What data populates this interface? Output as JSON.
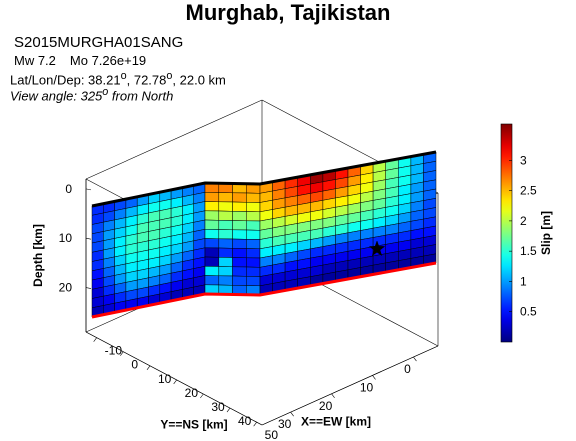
{
  "header": {
    "title": "Murghab, Tajikistan",
    "event_id": "S2015MURGHA01SANG",
    "mw_label": "Mw 7.2",
    "mo_label": "Mo 7.26e+19",
    "location_prefix": "Lat/Lon/Dep: 38.21",
    "lon_text": ", 72.78",
    "dep_text": ", 22.0 km",
    "degree_mark": "o",
    "view_prefix": "View angle: 325",
    "view_suffix": " from North"
  },
  "colors": {
    "fault_top": "#000000",
    "fault_bottom": "#ff0000",
    "grid_line": "#000000",
    "box_line": "#000000",
    "epicenter": "#000000"
  },
  "chart_data": {
    "type": "heatmap",
    "projection": "3d",
    "view_azimuth_deg": 325,
    "title": "Murghab, Tajikistan",
    "colorbar": {
      "label": "Slip [m]",
      "range": [
        0,
        3.6
      ],
      "ticks": [
        0.5,
        1,
        1.5,
        2,
        2.5,
        3
      ],
      "tick_labels": [
        "0.5",
        "1",
        "1.5",
        "2",
        "2.5",
        "3"
      ],
      "colormap": "jet"
    },
    "axes": {
      "x": {
        "label": "X==EW [km]",
        "ticks": [
          0,
          10,
          20,
          30
        ],
        "tick_labels": [
          "0",
          "10",
          "20",
          "30"
        ],
        "range": [
          -6,
          37
        ]
      },
      "y": {
        "label": "Y==NS [km]",
        "ticks": [
          -10,
          0,
          10,
          20,
          30,
          40,
          50
        ],
        "tick_labels": [
          "-10",
          "0",
          "10",
          "20",
          "30",
          "40",
          "50"
        ],
        "range": [
          -14,
          52
        ]
      },
      "z": {
        "label": "Depth [km]",
        "ticks": [
          0,
          10,
          20
        ],
        "tick_labels": [
          "0",
          "10",
          "20"
        ],
        "range": [
          -2,
          29
        ],
        "reversed": true
      }
    },
    "segments": [
      {
        "name_hidden": true,
        "rows": 12,
        "cols": 10,
        "slip": [
          [
            0.6,
            0.6,
            0.7,
            0.8,
            1.0,
            1.2,
            1.1,
            1.0,
            0.9,
            0.8
          ],
          [
            0.6,
            0.7,
            0.9,
            1.1,
            1.3,
            1.4,
            1.4,
            1.3,
            1.1,
            0.9
          ],
          [
            0.7,
            0.9,
            1.1,
            1.3,
            1.5,
            1.6,
            1.6,
            1.5,
            1.3,
            1.0
          ],
          [
            0.7,
            1.0,
            1.2,
            1.4,
            1.6,
            1.6,
            1.6,
            1.5,
            1.3,
            1.0
          ],
          [
            0.7,
            1.0,
            1.3,
            1.5,
            1.6,
            1.6,
            1.5,
            1.4,
            1.2,
            0.9
          ],
          [
            0.6,
            1.0,
            1.3,
            1.5,
            1.5,
            1.5,
            1.4,
            1.3,
            1.1,
            0.8
          ],
          [
            0.6,
            0.9,
            1.2,
            1.4,
            1.4,
            1.4,
            1.3,
            1.2,
            1.0,
            0.7
          ],
          [
            0.5,
            0.8,
            1.1,
            1.3,
            1.3,
            1.3,
            1.2,
            1.0,
            0.8,
            0.6
          ],
          [
            0.4,
            0.7,
            1.0,
            1.2,
            1.2,
            1.1,
            1.0,
            0.8,
            0.6,
            0.5
          ],
          [
            0.3,
            0.6,
            0.8,
            1.0,
            1.0,
            0.9,
            0.8,
            0.6,
            0.5,
            0.4
          ],
          [
            0.3,
            0.4,
            0.6,
            0.7,
            0.7,
            0.6,
            0.5,
            0.4,
            0.3,
            0.3
          ],
          [
            0.2,
            0.3,
            0.4,
            0.4,
            0.4,
            0.3,
            0.3,
            0.2,
            0.2,
            0.2
          ]
        ]
      },
      {
        "name_hidden": true,
        "rows": 12,
        "cols": 4,
        "slip": [
          [
            2.7,
            2.7,
            2.5,
            2.6
          ],
          [
            2.6,
            2.5,
            2.6,
            2.5
          ],
          [
            2.3,
            2.2,
            2.3,
            2.2
          ],
          [
            1.9,
            2.0,
            1.9,
            2.0
          ],
          [
            1.7,
            1.6,
            1.7,
            1.6
          ],
          [
            1.4,
            1.5,
            1.4,
            1.4
          ],
          [
            0.7,
            0.8,
            0.7,
            0.8
          ],
          [
            0.2,
            0.6,
            0.5,
            0.6
          ],
          [
            0.2,
            1.2,
            0.5,
            0.5
          ],
          [
            1.3,
            1.2,
            0.6,
            0.6
          ],
          [
            0.8,
            0.9,
            0.7,
            0.7
          ],
          [
            1.2,
            1.1,
            0.8,
            0.9
          ]
        ]
      },
      {
        "name_hidden": true,
        "rows": 12,
        "cols": 14,
        "slip": [
          [
            2.6,
            2.8,
            3.0,
            3.2,
            3.5,
            3.4,
            3.1,
            2.8,
            2.4,
            2.0,
            1.7,
            1.4,
            1.1,
            0.8
          ],
          [
            2.5,
            2.7,
            2.9,
            3.1,
            3.2,
            3.1,
            2.9,
            2.6,
            2.3,
            2.0,
            1.7,
            1.4,
            1.1,
            0.8
          ],
          [
            2.4,
            2.6,
            2.7,
            2.8,
            2.9,
            2.8,
            2.6,
            2.4,
            2.2,
            1.9,
            1.6,
            1.4,
            1.1,
            0.8
          ],
          [
            2.2,
            2.4,
            2.5,
            2.5,
            2.5,
            2.4,
            2.3,
            2.2,
            2.0,
            1.8,
            1.6,
            1.3,
            1.0,
            0.8
          ],
          [
            1.9,
            2.0,
            2.1,
            2.2,
            2.2,
            2.1,
            2.0,
            1.9,
            1.8,
            1.7,
            1.5,
            1.3,
            1.0,
            0.8
          ],
          [
            1.7,
            1.8,
            1.8,
            1.8,
            1.8,
            1.8,
            1.7,
            1.7,
            1.6,
            1.5,
            1.4,
            1.2,
            0.9,
            0.7
          ],
          [
            1.5,
            1.6,
            1.6,
            1.6,
            1.6,
            1.5,
            1.5,
            1.4,
            1.4,
            1.3,
            1.2,
            1.0,
            0.8,
            0.7
          ],
          [
            1.3,
            1.3,
            1.3,
            1.2,
            1.1,
            1.0,
            0.9,
            0.9,
            0.9,
            0.9,
            0.9,
            0.8,
            0.7,
            0.6
          ],
          [
            0.9,
            0.9,
            0.8,
            0.7,
            0.6,
            0.6,
            0.6,
            0.6,
            0.6,
            0.6,
            0.6,
            0.6,
            0.5,
            0.5
          ],
          [
            0.6,
            0.6,
            0.5,
            0.5,
            0.4,
            0.4,
            0.4,
            0.4,
            0.4,
            0.4,
            0.4,
            0.4,
            0.3,
            0.3
          ],
          [
            0.3,
            0.3,
            0.3,
            0.3,
            0.3,
            0.2,
            0.2,
            0.2,
            0.2,
            0.2,
            0.2,
            0.2,
            0.2,
            0.2
          ],
          [
            0.2,
            0.2,
            0.2,
            0.2,
            0.1,
            0.1,
            0.1,
            0.1,
            0.1,
            0.1,
            0.1,
            0.1,
            0.1,
            0.1
          ]
        ]
      }
    ]
  }
}
